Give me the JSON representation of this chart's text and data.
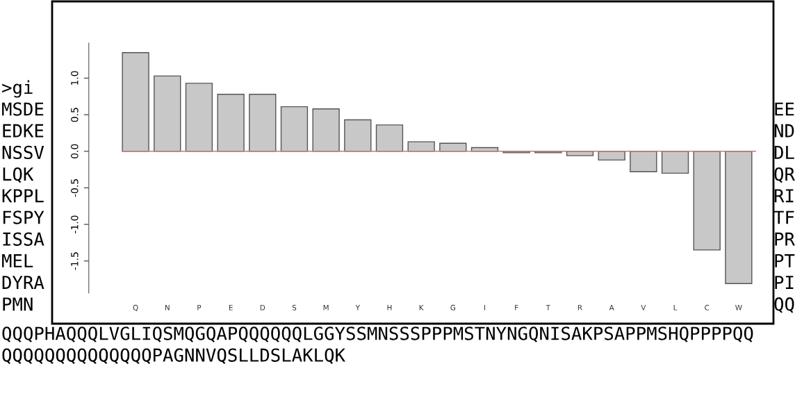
{
  "chart_data": {
    "type": "bar",
    "categories": [
      "Q",
      "N",
      "P",
      "E",
      "D",
      "S",
      "M",
      "Y",
      "H",
      "K",
      "G",
      "I",
      "F",
      "T",
      "R",
      "A",
      "V",
      "L",
      "C",
      "W"
    ],
    "values": [
      1.35,
      1.03,
      0.93,
      0.78,
      0.78,
      0.61,
      0.58,
      0.43,
      0.36,
      0.13,
      0.11,
      0.05,
      -0.02,
      -0.02,
      -0.06,
      -0.12,
      -0.28,
      -0.3,
      -1.35,
      -1.81
    ],
    "color": "#c8c8c8",
    "ylim": [
      -1.94,
      1.48
    ],
    "yticks": [
      {
        "value": -1.5,
        "label": "-1.5"
      },
      {
        "value": -1.0,
        "label": "-1.0"
      },
      {
        "value": -0.5,
        "label": "-0.5"
      },
      {
        "value": 0.0,
        "label": "0.0"
      },
      {
        "value": 0.5,
        "label": "0.5"
      },
      {
        "value": 1.0,
        "label": "1.0"
      }
    ],
    "ref_lines": [
      {
        "axis": "y",
        "value": 0,
        "color": "#e07070"
      }
    ],
    "grid": false,
    "legend": false,
    "annotations": [
      ">gi",
      "MSDE",
      "EDKE",
      "NSSV",
      "LQK",
      "KPPL",
      "FSPY",
      "ISSA",
      "MEL",
      "DYRA",
      "PMN",
      "EE",
      "ND",
      "DL",
      "QR",
      "RI",
      "TF",
      "PR",
      "PT",
      "PI",
      "QQ",
      "QQQPHAQQQLVGLIQSMQGQAPQQQQQQLGGYSSMNSSSPPPMSTNYNGQNISAKPSAPPMSHQPPPPQQ",
      "QQQQQQQQQQQQQQPAGNNVQSLLDSLAKLQK"
    ]
  }
}
